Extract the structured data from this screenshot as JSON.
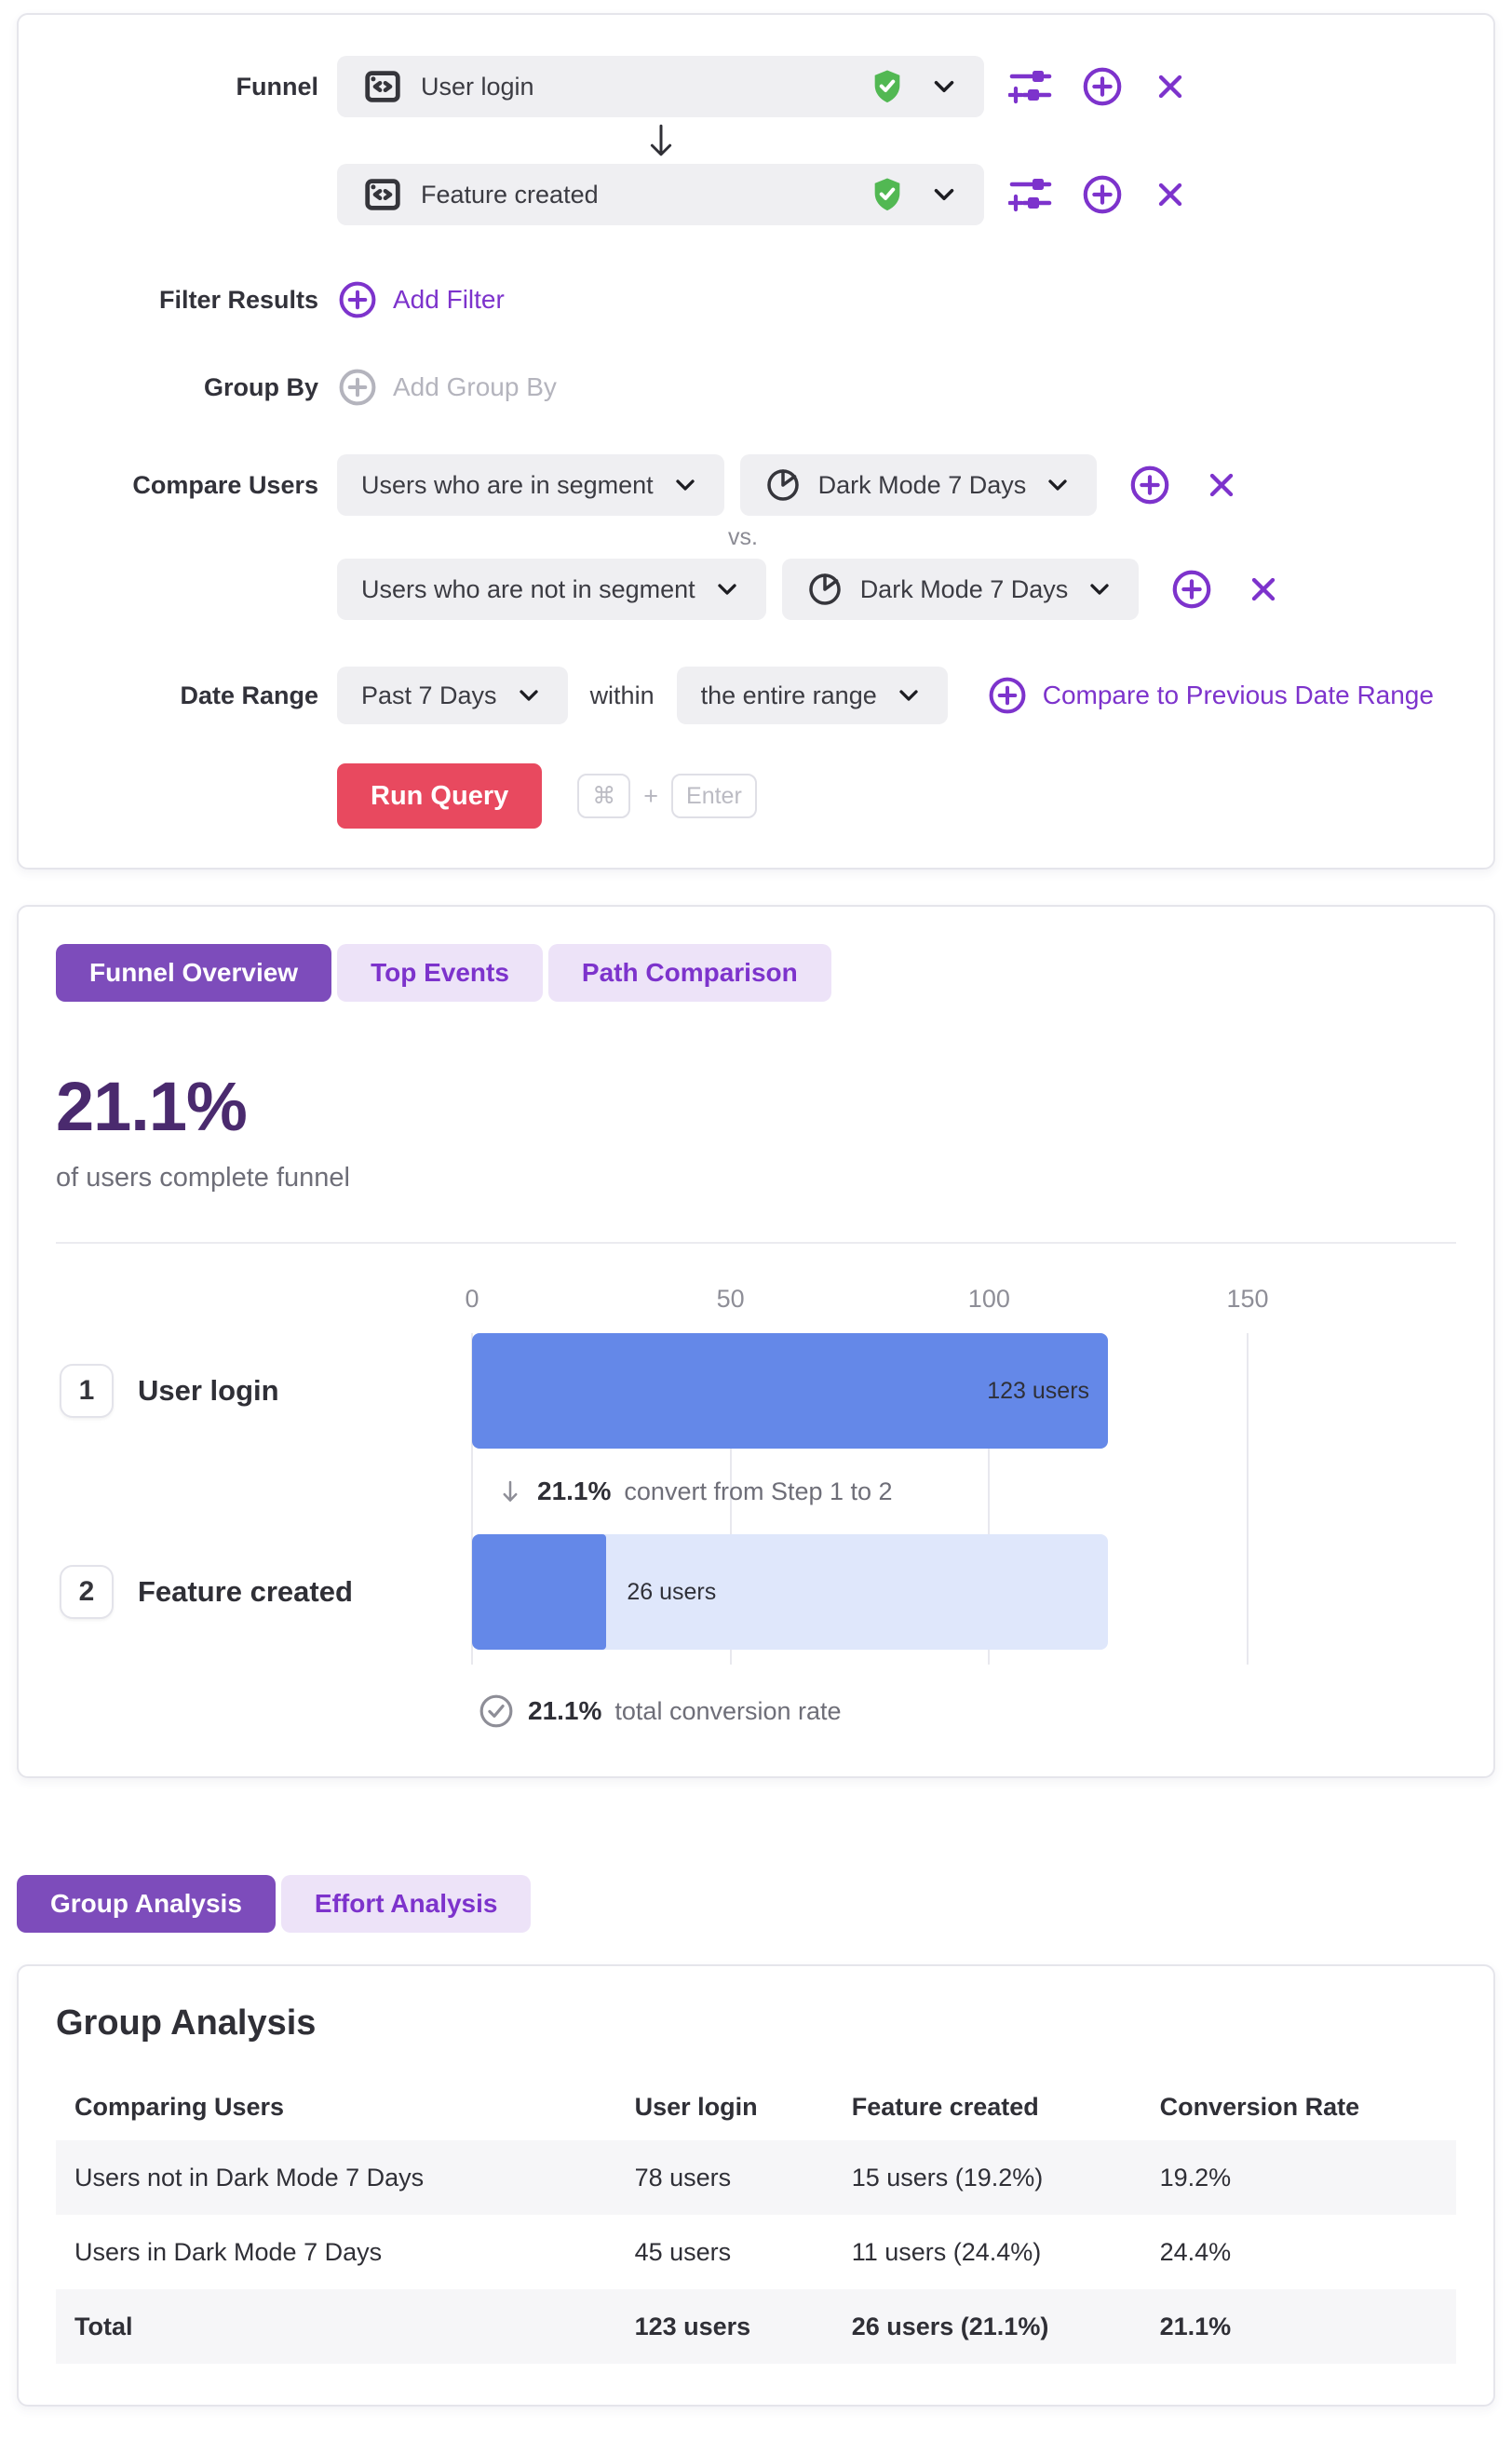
{
  "query_builder": {
    "funnel_label": "Funnel",
    "steps": [
      {
        "name": "User login"
      },
      {
        "name": "Feature created"
      }
    ],
    "filter": {
      "label": "Filter Results",
      "add_label": "Add Filter"
    },
    "group_by": {
      "label": "Group By",
      "add_label": "Add Group By"
    },
    "compare": {
      "label": "Compare Users",
      "vs_label": "vs.",
      "rows": [
        {
          "selector": "Users who are in segment",
          "segment": "Dark Mode 7 Days"
        },
        {
          "selector": "Users who are not in segment",
          "segment": "Dark Mode 7 Days"
        }
      ]
    },
    "date_range": {
      "label": "Date Range",
      "value": "Past 7 Days",
      "within_label": "within",
      "window_value": "the entire range",
      "compare_link": "Compare to Previous Date Range"
    },
    "run": {
      "button_label": "Run Query",
      "key_cmd": "⌘",
      "key_plus": "+",
      "key_enter": "Enter"
    }
  },
  "overview": {
    "tabs": [
      {
        "label": "Funnel Overview",
        "active": true
      },
      {
        "label": "Top Events",
        "active": false
      },
      {
        "label": "Path Comparison",
        "active": false
      }
    ],
    "headline": {
      "value": "21.1%",
      "caption": "of users complete funnel"
    },
    "step_note": {
      "value": "21.1%",
      "text": "convert from Step 1 to 2"
    },
    "total_note": {
      "value": "21.1%",
      "text": "total conversion rate"
    }
  },
  "chart_data": {
    "type": "bar",
    "orientation": "horizontal",
    "categories": [
      "User login",
      "Feature created"
    ],
    "step_numbers": [
      "1",
      "2"
    ],
    "values": [
      123,
      26
    ],
    "value_labels": [
      "123 users",
      "26 users"
    ],
    "x_ticks": [
      0,
      50,
      100,
      150
    ],
    "xlim": [
      0,
      150
    ],
    "grid": true,
    "conversion_step_1_to_2_pct": 21.1,
    "total_conversion_pct": 21.1,
    "bar_color": "#6488e8",
    "bar_track_color": "#dfe7fb"
  },
  "analysis_tabs": [
    {
      "label": "Group Analysis",
      "active": true
    },
    {
      "label": "Effort Analysis",
      "active": false
    }
  ],
  "group_analysis": {
    "title": "Group Analysis",
    "columns": [
      "Comparing Users",
      "User login",
      "Feature created",
      "Conversion Rate"
    ],
    "rows": [
      {
        "cells": [
          "Users not in Dark Mode 7 Days",
          "78 users",
          "15 users (19.2%)",
          "19.2%"
        ]
      },
      {
        "cells": [
          "Users in Dark Mode 7 Days",
          "45 users",
          "11 users (24.4%)",
          "24.4%"
        ]
      },
      {
        "cells": [
          "Total",
          "123 users",
          "26 users (21.1%)",
          "21.1%"
        ]
      }
    ]
  },
  "colors": {
    "accent_purple": "#7d33cc",
    "tab_active_bg": "#7d4cbb",
    "tab_inactive_bg": "#ede3f8",
    "run_button_bg": "#e8495f",
    "bar_blue": "#6488e8",
    "bar_track": "#dfe7fb",
    "verified_green": "#52b853",
    "headline_purple": "#4a2a6e",
    "dropdown_bg": "#efeff2"
  }
}
